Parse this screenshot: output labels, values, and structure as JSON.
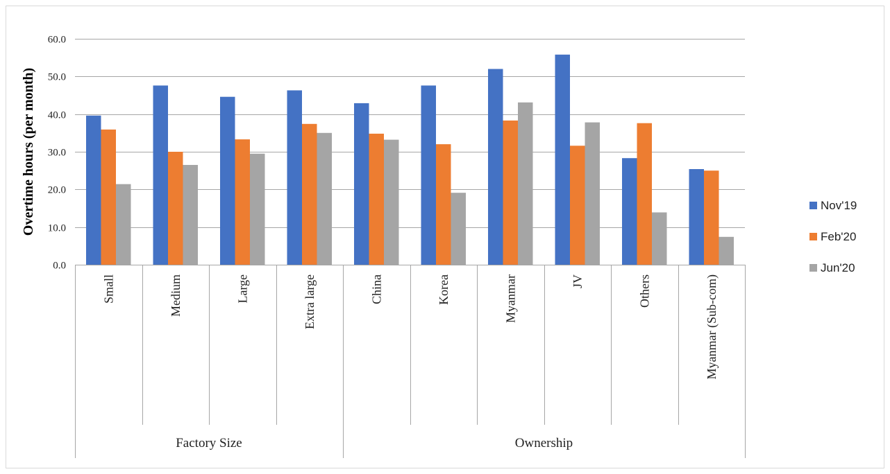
{
  "chart_data": {
    "type": "bar",
    "title": "",
    "xlabel": "",
    "ylabel": "Overtime hours (per month)",
    "ylim": [
      0,
      60
    ],
    "ytick_step": 10,
    "ytick_labels": [
      "0.0",
      "10.0",
      "20.0",
      "30.0",
      "40.0",
      "50.0",
      "60.0"
    ],
    "grid": true,
    "legend_position": "right",
    "categories": [
      "Small",
      "Medium",
      "Large",
      "Extra large",
      "China",
      "Korea",
      "Myanmar",
      "JV",
      "Others",
      "Myanmar (Sub-com)"
    ],
    "groups": [
      {
        "label": "Factory Size",
        "start": 0,
        "end": 3
      },
      {
        "label": "Ownership",
        "start": 4,
        "end": 9
      }
    ],
    "series": [
      {
        "name": "Nov'19",
        "color": "#4472c4",
        "values": [
          39.6,
          47.6,
          44.6,
          46.3,
          42.9,
          47.6,
          52.0,
          55.8,
          28.3,
          25.4
        ]
      },
      {
        "name": "Feb'20",
        "color": "#ed7d31",
        "values": [
          35.9,
          30.0,
          33.3,
          37.4,
          34.8,
          32.0,
          38.3,
          31.6,
          37.6,
          25.0
        ]
      },
      {
        "name": "Jun'20",
        "color": "#a5a5a5",
        "values": [
          21.4,
          26.5,
          29.5,
          35.0,
          33.2,
          19.1,
          43.1,
          37.8,
          13.9,
          7.4
        ]
      }
    ]
  }
}
